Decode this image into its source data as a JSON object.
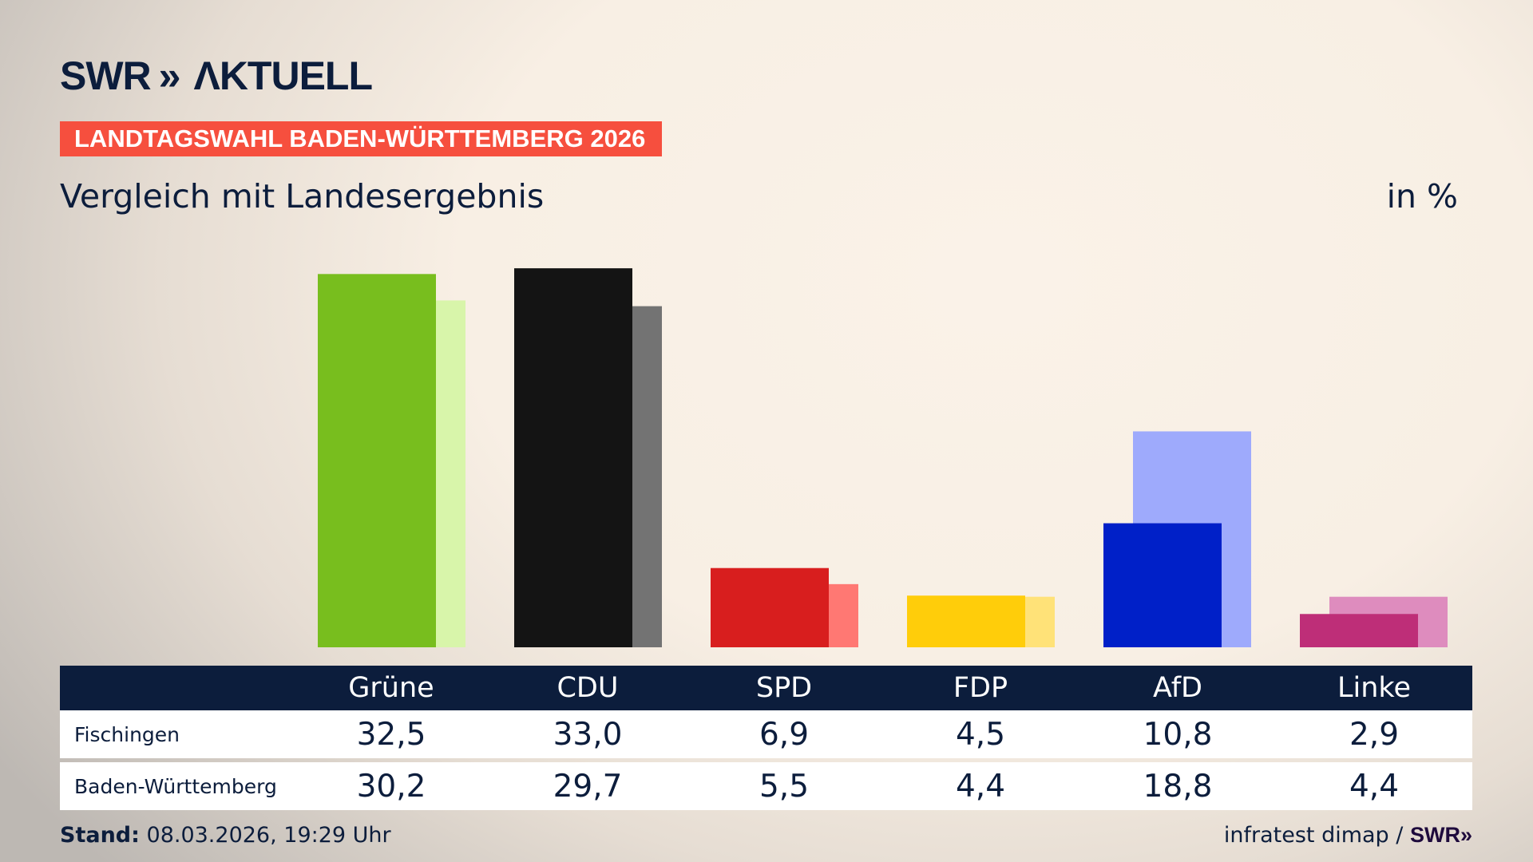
{
  "header": {
    "logo_text": "SWR AKTUELL",
    "banner": "LANDTAGSWAHL BADEN-WÜRTTEMBERG 2026",
    "subtitle": "Vergleich mit Landesergebnis",
    "unit": "in %"
  },
  "chart_data": {
    "type": "bar",
    "title": "Vergleich mit Landesergebnis",
    "ylabel": "in %",
    "categories": [
      "Grüne",
      "CDU",
      "SPD",
      "FDP",
      "AfD",
      "Linke"
    ],
    "series": [
      {
        "name": "Fischingen",
        "values": [
          32.5,
          33.0,
          6.9,
          4.5,
          10.8,
          2.9
        ],
        "colors": [
          "#78be1e",
          "#141414",
          "#d81e1e",
          "#ffcd0a",
          "#0020c8",
          "#be2e78"
        ]
      },
      {
        "name": "Baden-Württemberg",
        "values": [
          30.2,
          29.7,
          5.5,
          4.4,
          18.8,
          4.4
        ],
        "colors": [
          "#d8f5aa",
          "#737373",
          "#ff7873",
          "#ffe278",
          "#9eaafc",
          "#de8cbe"
        ]
      }
    ],
    "ylim": [
      0,
      33
    ],
    "grid": false,
    "legend": "table below chart"
  },
  "table": {
    "rows": [
      {
        "label": "Fischingen",
        "values": [
          "32,5",
          "33,0",
          "6,9",
          "4,5",
          "10,8",
          "2,9"
        ]
      },
      {
        "label": "Baden-Württemberg",
        "values": [
          "30,2",
          "29,7",
          "5,5",
          "4,4",
          "18,8",
          "4,4"
        ]
      }
    ]
  },
  "footer": {
    "stand_label": "Stand:",
    "stand_value": "08.03.2026, 19:29 Uhr",
    "source": "infratest dimap /",
    "source_logo": "SWR"
  },
  "colors": {
    "navy": "#0c1d3c",
    "banner": "#f64f3e"
  }
}
